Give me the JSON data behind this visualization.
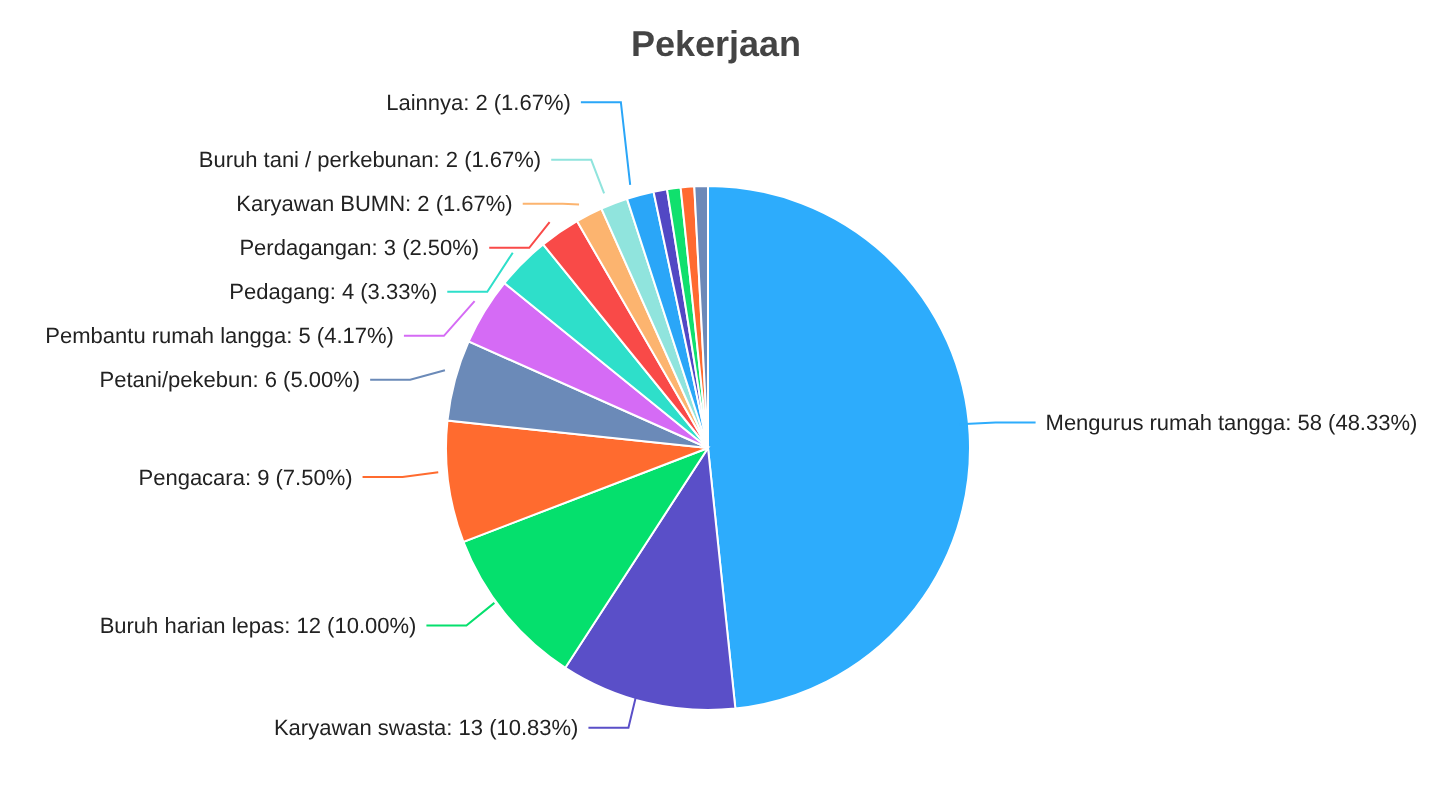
{
  "chart_data": {
    "type": "pie",
    "title": "Pekerjaan",
    "categories": [
      "Mengurus rumah tangga",
      "Karyawan swasta",
      "Buruh harian lepas",
      "Pengacara",
      "Petani/pekebun",
      "Pembantu rumah langga",
      "Pedagang",
      "Perdagangan",
      "Karyawan BUMN",
      "Buruh tani / perkebunan",
      "Lainnya",
      null,
      null,
      null,
      null
    ],
    "values": [
      58,
      13,
      12,
      9,
      6,
      5,
      4,
      3,
      2,
      2,
      2,
      1,
      1,
      1,
      1
    ],
    "value_labels": [
      "58 (48.33%)",
      "13 (10.83%)",
      "12 (10.00%)",
      "9 (7.50%)",
      "6 (5.00%)",
      "5 (4.17%)",
      "4 (3.33%)",
      "3 (2.50%)",
      "2 (1.67%)",
      "2 (1.67%)",
      "2 (1.67%)",
      null,
      null,
      null,
      null
    ],
    "colors": [
      "#2dacfc",
      "#5a4fc8",
      "#05e06d",
      "#ff6b2f",
      "#6b8ab8",
      "#d56bf5",
      "#2edfca",
      "#f94a48",
      "#fcb46f",
      "#90e4dd",
      "#2aa6f8",
      "#5248c4",
      "#10e06d",
      "#ff6a30",
      "#6c89b8"
    ]
  }
}
